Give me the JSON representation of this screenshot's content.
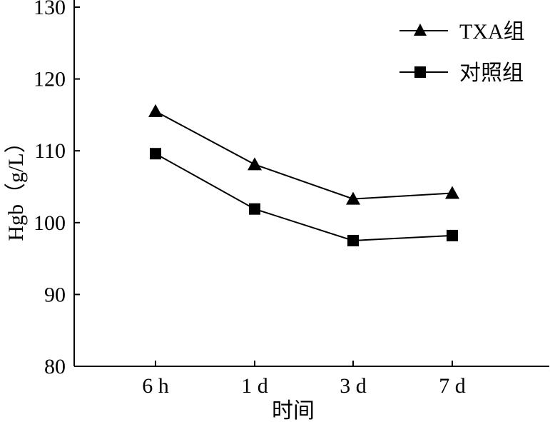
{
  "chart_data": {
    "type": "line",
    "title": "",
    "xlabel": "时间",
    "ylabel": "Hgb（g/L）",
    "categories": [
      "6 h",
      "1 d",
      "3 d",
      "7 d"
    ],
    "ylim": [
      80,
      130
    ],
    "yticks": [
      "80",
      "90",
      "100",
      "110",
      "120",
      "130"
    ],
    "grid": false,
    "legend_position": "top-right",
    "series": [
      {
        "name": "TXA组",
        "marker": "triangle",
        "color": "#000000",
        "values": [
          115.5,
          108.1,
          103.3,
          104.1
        ]
      },
      {
        "name": "对照组",
        "marker": "square",
        "color": "#000000",
        "values": [
          109.6,
          101.9,
          97.5,
          98.2
        ]
      }
    ]
  }
}
